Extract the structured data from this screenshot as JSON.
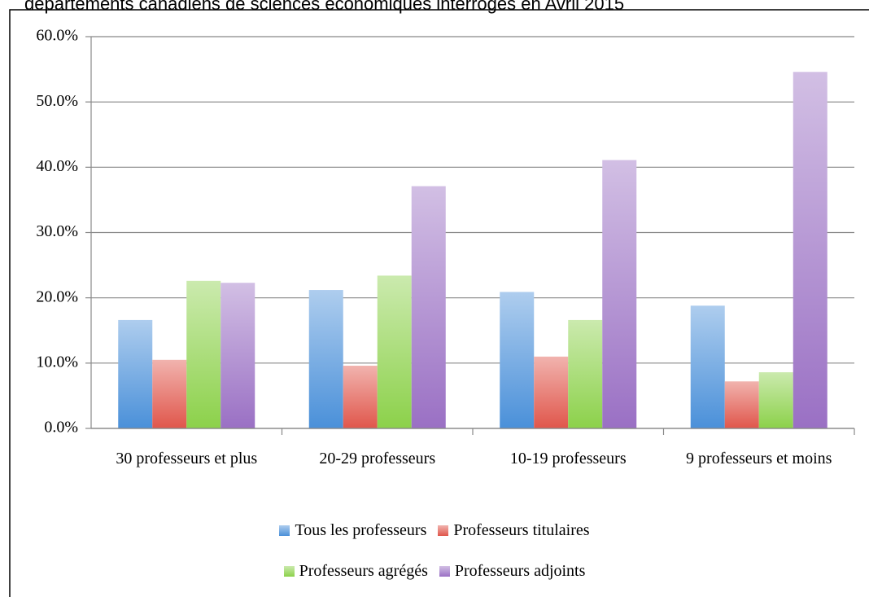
{
  "chart_data": {
    "type": "bar",
    "title": "départements canadiens de sciences économiques interrogés en Avril 2015",
    "categories": [
      "30 professeurs et plus",
      "20-29 professeurs",
      "10-19 professeurs",
      "9 professeurs et moins"
    ],
    "series": [
      {
        "name": "Tous les professeurs",
        "color": "#4a90d9",
        "values": [
          16.6,
          21.2,
          20.9,
          18.8
        ]
      },
      {
        "name": "Professeurs titulaires",
        "color": "#e0564b",
        "values": [
          10.5,
          9.6,
          11.0,
          7.2
        ]
      },
      {
        "name": "Professeurs agrégés",
        "color": "#8cd14a",
        "values": [
          22.6,
          23.4,
          16.6,
          8.6
        ]
      },
      {
        "name": "Professeurs adjoints",
        "color": "#9a70c4",
        "values": [
          22.3,
          37.1,
          41.1,
          54.6
        ]
      }
    ],
    "ylim": [
      0,
      60
    ],
    "yticks": [
      {
        "value": 0,
        "label": "0.0%"
      },
      {
        "value": 10,
        "label": "10.0%"
      },
      {
        "value": 20,
        "label": "20.0%"
      },
      {
        "value": 30,
        "label": "30.0%"
      },
      {
        "value": 40,
        "label": "40.0%"
      },
      {
        "value": 50,
        "label": "50.0%"
      },
      {
        "value": 60,
        "label": "60.0%"
      }
    ],
    "grid": true
  }
}
